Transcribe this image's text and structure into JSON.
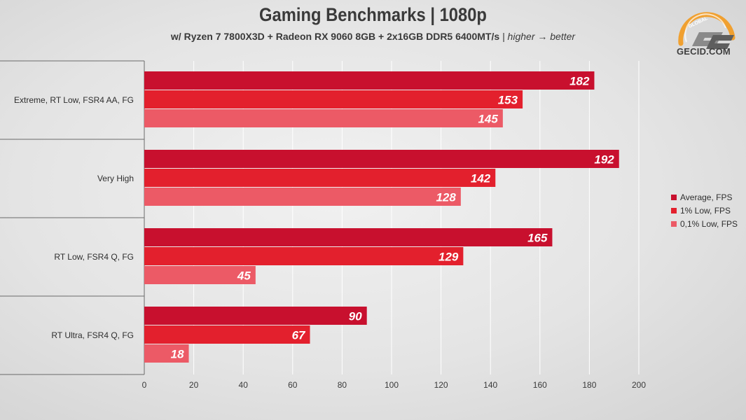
{
  "logo": {
    "text": "GECID.COM",
    "ring_word": "GLOBAL"
  },
  "chart_data": {
    "type": "bar",
    "orientation": "horizontal",
    "title": "Gaming Benchmarks | 1080p",
    "subtitle": "w/ Ryzen 7 7800X3D + Radeon RX 9060 8GB + 2x16GB DDR5 6400MT/s",
    "subtitle_note": "| higher → better",
    "categories": [
      "Extreme, RT Low, FSR4 AA, FG",
      "Very High",
      "RT Low, FSR4 Q, FG",
      "RT Ultra, FSR4 Q, FG"
    ],
    "series": [
      {
        "name": "Average, FPS",
        "color": "#c8102e",
        "values": [
          182,
          192,
          165,
          90
        ]
      },
      {
        "name": "1% Low, FPS",
        "color": "#e3202d",
        "values": [
          153,
          142,
          129,
          67
        ]
      },
      {
        "name": "0,1% Low, FPS",
        "color": "#ec5a66",
        "values": [
          145,
          128,
          45,
          18
        ]
      }
    ],
    "xlim": [
      0,
      200
    ],
    "xticks": [
      0,
      20,
      40,
      60,
      80,
      100,
      120,
      140,
      160,
      180,
      200
    ],
    "grid": true,
    "legend": "right"
  }
}
